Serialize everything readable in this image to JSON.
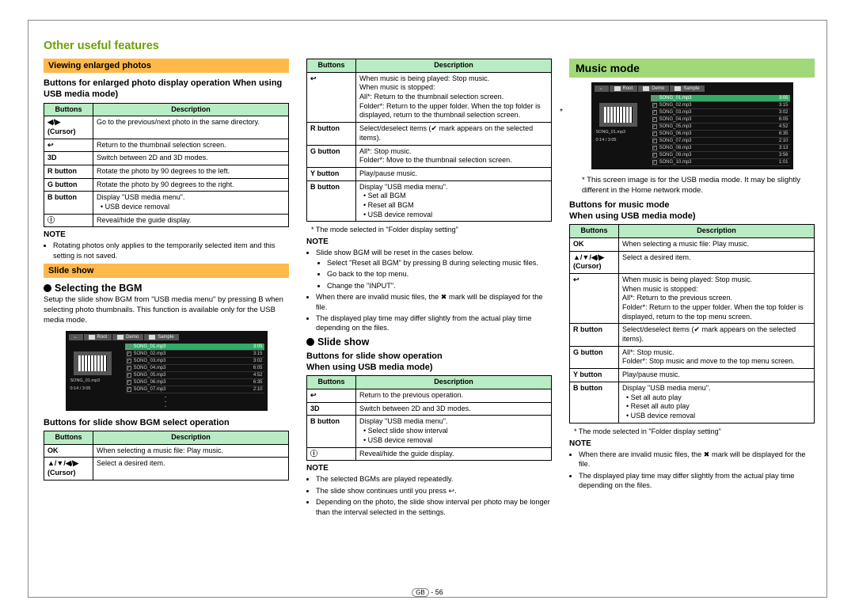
{
  "page": {
    "title": "Other useful features",
    "pagenum": "56",
    "pagelabel": "GB"
  },
  "col1": {
    "label1": "Viewing enlarged photos",
    "sub1": "Buttons for enlarged photo display operation When using USB media mode)",
    "table1": {
      "headers": [
        "Buttons",
        "Description"
      ],
      "rows": [
        [
          "◀/▶\n(Cursor)",
          "Go to the previous/next photo in the same directory."
        ],
        [
          "↩",
          "Return to the thumbnail selection screen."
        ],
        [
          "3D",
          "Switch between 2D and 3D modes."
        ],
        [
          "R button",
          "Rotate the photo by 90 degrees to the left."
        ],
        [
          "G button",
          "Rotate the photo by 90 degrees to the right."
        ],
        [
          "B button",
          "Display \"USB media menu\".\n• USB device removal"
        ],
        [
          "ⓘ",
          "Reveal/hide the guide display."
        ]
      ]
    },
    "note1_label": "NOTE",
    "note1_items": [
      "Rotating photos only applies to the temporarily selected item and this setting is not saved."
    ],
    "label2": "Slide show",
    "bgm_heading": "Selecting the BGM",
    "bgm_para": "Setup the slide show BGM from \"USB media menu\" by pressing B when selecting photo thumbnails. This function is available only for the USB media mode.",
    "sub2": "Buttons for slide show BGM select operation",
    "table2": {
      "headers": [
        "Buttons",
        "Description"
      ],
      "rows": [
        [
          "OK",
          "When selecting a music file: Play music."
        ],
        [
          "▲/▼/◀/▶\n(Cursor)",
          "Select a desired item."
        ]
      ]
    }
  },
  "col2": {
    "table1": {
      "headers": [
        "Buttons",
        "Description"
      ],
      "rows": [
        [
          "↩",
          "When music is being played: Stop music.\nWhen music is stopped:\nAll*: Return to the thumbnail selection screen.\nFolder*: Return to the upper folder. When the top folder is displayed, return to the thumbnail selection screen."
        ],
        [
          "R button",
          "Select/deselect items (✔ mark appears on the selected items)."
        ],
        [
          "G button",
          "All*: Stop music.\nFolder*: Move to the thumbnail selection screen."
        ],
        [
          "Y button",
          "Play/pause music."
        ],
        [
          "B button",
          "Display \"USB media menu\".\n• Set all BGM\n• Reset all BGM\n• USB device removal"
        ]
      ],
      "footnote": "* The mode selected in \"Folder display setting\""
    },
    "note1_label": "NOTE",
    "note1_items": [
      "Slide show BGM will be reset in the cases below.",
      "When there are invalid music files, the ✖ mark will be displayed for the file.",
      "The displayed play time may differ slightly from the actual play time depending on the files."
    ],
    "note1_sub": [
      "Select \"Reset all BGM\" by pressing B during selecting music files.",
      "Go back to the top menu.",
      "Change the \"INPUT\"."
    ],
    "slide_heading": "Slide show",
    "sub2": "Buttons for slide show operation\nWhen using USB media mode)",
    "table2": {
      "headers": [
        "Buttons",
        "Description"
      ],
      "rows": [
        [
          "↩",
          "Return to the previous operation."
        ],
        [
          "3D",
          "Switch between 2D and 3D modes."
        ],
        [
          "B button",
          "Display \"USB media menu\".\n• Select slide show interval\n• USB device removal"
        ],
        [
          "ⓘ",
          "Reveal/hide the guide display."
        ]
      ]
    },
    "note2_label": "NOTE",
    "note2_items": [
      "The selected BGMs are played repeatedly.",
      "The slide show continues until you press ↩.",
      "Depending on the photo, the slide show interval per photo may be longer than the interval selected in the settings."
    ]
  },
  "col3": {
    "label": "Music mode",
    "starnote": "* This screen image is for the USB media mode. It may be slightly different in the Home network mode.",
    "sub1": "Buttons for music mode\nWhen using USB media mode)",
    "table1": {
      "headers": [
        "Buttons",
        "Description"
      ],
      "rows": [
        [
          "OK",
          "When selecting a music file: Play music."
        ],
        [
          "▲/▼/◀/▶\n(Cursor)",
          "Select a desired item."
        ],
        [
          "↩",
          "When music is being played: Stop music.\nWhen music is stopped:\nAll*: Return to the previous screen.\nFolder*: Return to the upper folder. When the top folder is displayed, return to the top menu screen."
        ],
        [
          "R button",
          "Select/deselect items (✔ mark appears on the selected items)."
        ],
        [
          "G button",
          "All*: Stop music.\nFolder*: Stop music and move to the top menu screen."
        ],
        [
          "Y button",
          "Play/pause music."
        ],
        [
          "B button",
          "Display \"USB media menu\".\n• Set all auto play\n• Reset all auto play\n• USB device removal"
        ]
      ],
      "footnote": "* The mode selected in \"Folder display setting\""
    },
    "note1_label": "NOTE",
    "note1_items": [
      "When there are invalid music files, the ✖ mark will be displayed for the file.",
      "The displayed play time may differ slightly from the actual play time depending on the files."
    ]
  },
  "screenshot": {
    "tabs": [
      "←",
      "Root",
      "Demo",
      "Sample"
    ],
    "now_playing": "SONG_01.mp3",
    "position": "0:14 / 3:05",
    "rows": [
      {
        "sel": true,
        "name": "SONG_01.mp3",
        "time": "3:05"
      },
      {
        "name": "SONG_02.mp3",
        "time": "3:15"
      },
      {
        "name": "SONG_03.mp3",
        "time": "3:02"
      },
      {
        "name": "SONG_04.mp3",
        "time": "6:05"
      },
      {
        "name": "SONG_05.mp3",
        "time": "4:52"
      },
      {
        "name": "SONG_06.mp3",
        "time": "6:35"
      },
      {
        "name": "SONG_07.mp3",
        "time": "2:10"
      }
    ],
    "rows_ext": [
      {
        "name": "SONG_08.mp3",
        "time": "3:13"
      },
      {
        "name": "SONG_09.mp3",
        "time": "3:56"
      },
      {
        "name": "SONG_10.mp3",
        "time": "1:01"
      }
    ]
  }
}
